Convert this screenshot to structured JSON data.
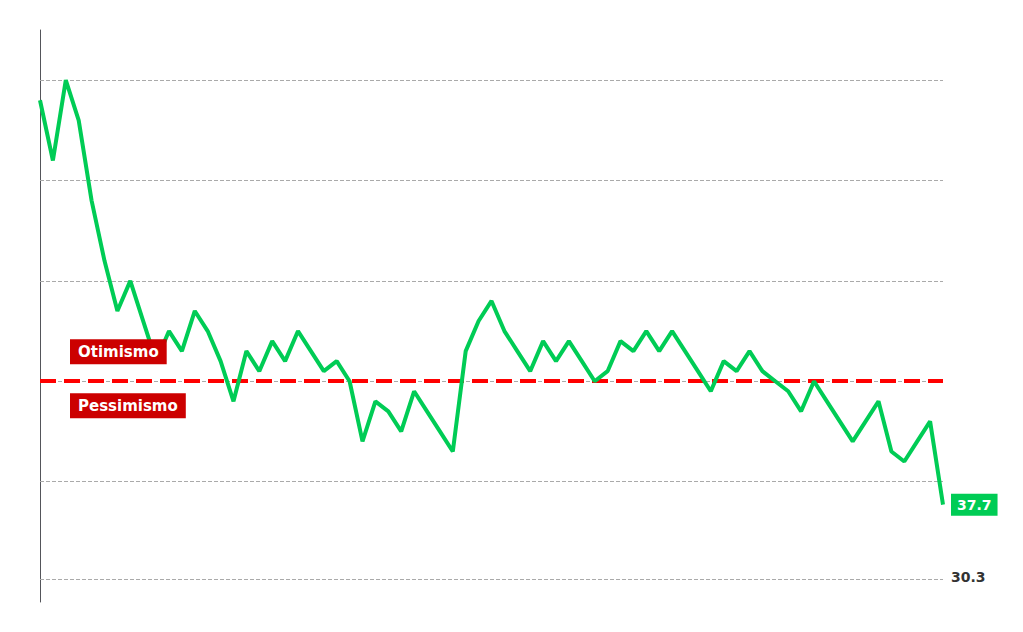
{
  "chart_data": {
    "type": "line",
    "values": [
      78,
      72,
      80,
      76,
      68,
      62,
      57,
      60,
      56,
      52,
      55,
      53,
      57,
      55,
      52,
      48,
      53,
      51,
      54,
      52,
      55,
      53,
      51,
      52,
      50,
      44,
      48,
      47,
      45,
      49,
      47,
      45,
      43,
      53,
      56,
      58,
      55,
      53,
      51,
      54,
      52,
      54,
      52,
      50,
      51,
      54,
      53,
      55,
      53,
      55,
      53,
      51,
      49,
      52,
      51,
      53,
      51,
      50,
      49,
      47,
      50,
      48,
      46,
      44,
      46,
      48,
      43,
      42,
      44,
      46,
      37.7
    ],
    "color": "#00cc55",
    "line_style": "solid",
    "ylim": [
      28,
      85
    ],
    "yticks": [
      30.3,
      40,
      50,
      60,
      70,
      80
    ],
    "grid": true,
    "tick_labels": false,
    "reference_line": {
      "value": 50,
      "color": "#ff0000",
      "line_style": "dashed"
    },
    "annotations": [
      {
        "text": "Otimismo",
        "color": "#cc0000"
      },
      {
        "text": "Pessimismo",
        "color": "#cc0000"
      },
      {
        "text": "37.7"
      },
      {
        "text": "30.3",
        "y": 30.3
      }
    ]
  }
}
